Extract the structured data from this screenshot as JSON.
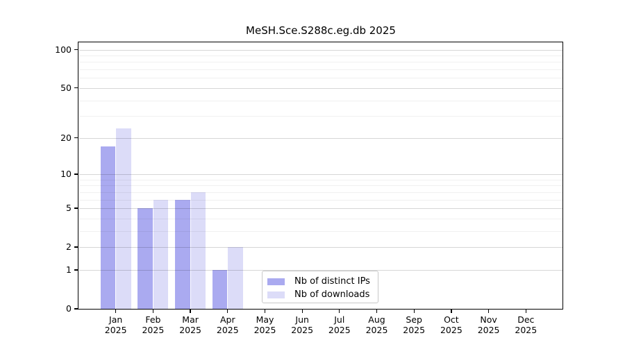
{
  "chart_data": {
    "type": "bar",
    "title": "MeSH.Sce.S288c.eg.db 2025",
    "categories": [
      "Jan",
      "Feb",
      "Mar",
      "Apr",
      "May",
      "Jun",
      "Jul",
      "Aug",
      "Sep",
      "Oct",
      "Nov",
      "Dec"
    ],
    "category_year": "2025",
    "series": [
      {
        "name": "Nb of distinct IPs",
        "color": "#aaaaf0",
        "values": [
          17,
          5,
          6,
          1,
          0,
          0,
          0,
          0,
          0,
          0,
          0,
          0
        ]
      },
      {
        "name": "Nb of downloads",
        "color": "#dcdcf8",
        "values": [
          24,
          6,
          7,
          2,
          0,
          0,
          0,
          0,
          0,
          0,
          0,
          0
        ]
      }
    ],
    "xlabel": "",
    "ylabel": "",
    "y_scale": "log1p",
    "ylim": [
      0,
      114
    ],
    "y_major_ticks": [
      0,
      1,
      2,
      5,
      10,
      20,
      50,
      100
    ],
    "y_minor_gridlines": [
      3,
      4,
      6,
      7,
      8,
      9,
      30,
      40,
      60,
      70,
      80,
      90
    ],
    "grid": true,
    "legend_position": "bottom-center"
  }
}
